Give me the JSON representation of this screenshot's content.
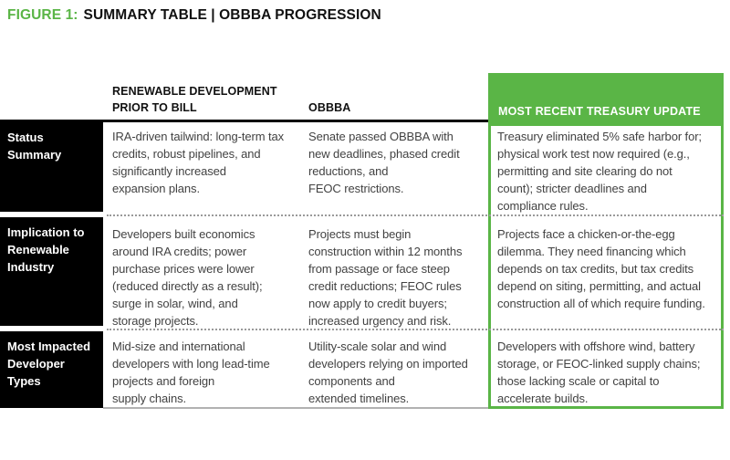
{
  "title": {
    "prefix": "FIGURE 1:",
    "main": "SUMMARY TABLE | OBBBA PROGRESSION"
  },
  "colors": {
    "accent_green": "#5ab546",
    "row_header_bg": "#000000",
    "body_text": "#424242"
  },
  "table": {
    "column_headers": [
      "RENEWABLE DEVELOPMENT\nPRIOR TO BILL",
      "OBBBA",
      "MOST RECENT TREASURY UPDATE"
    ],
    "rows": [
      {
        "header": "Status Summary",
        "cells": [
          "IRA-driven tailwind: long-term tax\ncredits, robust pipelines, and\nsignificantly increased\nexpansion plans.",
          "Senate passed OBBBA with\nnew deadlines, phased credit\nreductions, and\nFEOC restrictions.",
          "Treasury eliminated 5% safe harbor for;\nphysical work test now required (e.g.,\npermitting and site clearing do not\ncount); stricter deadlines and\ncompliance rules."
        ]
      },
      {
        "header": "Implication to\nRenewable\nIndustry",
        "cells": [
          "Developers built economics\naround IRA credits; power\npurchase prices were lower\n(reduced directly as a result);\nsurge in solar, wind, and\nstorage projects.",
          "Projects must begin\nconstruction within 12 months\nfrom passage or face steep\ncredit reductions; FEOC rules\nnow apply to credit buyers;\nincreased urgency and risk.",
          "Projects face a chicken-or-the-egg\ndilemma. They need financing which\ndepends on tax credits, but tax credits\ndepend on siting, permitting, and actual\nconstruction all of which require funding."
        ]
      },
      {
        "header": "Most Impacted\nDeveloper Types",
        "cells": [
          "Mid-size and international\ndevelopers with long lead-time\nprojects and foreign\nsupply chains.",
          "Utility-scale solar and wind\ndevelopers relying on imported\ncomponents and\nextended timelines.",
          "Developers with offshore wind, battery\nstorage, or FEOC-linked supply chains;\nthose lacking scale or capital to\naccelerate builds."
        ]
      }
    ]
  }
}
